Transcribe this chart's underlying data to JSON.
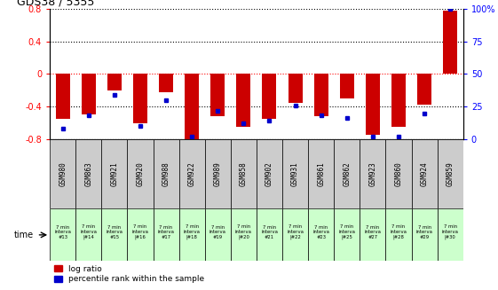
{
  "title": "GDS38 / 5355",
  "samples": [
    "GSM980",
    "GSM863",
    "GSM921",
    "GSM920",
    "GSM988",
    "GSM922",
    "GSM989",
    "GSM858",
    "GSM902",
    "GSM931",
    "GSM861",
    "GSM862",
    "GSM923",
    "GSM860",
    "GSM924",
    "GSM859"
  ],
  "time_labels": [
    "7 min\ninterva\n#13",
    "7 min\ninterva\n|#14",
    "7 min\ninterva\n#15",
    "7 min\ninterva\n|#16",
    "7 min\ninterva\n#17",
    "7 min\ninterva\n|#18",
    "7 min\ninterva\n#19",
    "7 min\ninterva\n|#20",
    "7 min\ninterva\n#21",
    "7 min\ninterva\n|#22",
    "7 min\ninterva\n#23",
    "7 min\ninterva\n|#25",
    "7 min\ninterva\n#27",
    "7 min\ninterva\n|#28",
    "7 min\ninterva\n#29",
    "7 min\ninterva\n|#30"
  ],
  "log_ratio": [
    -0.55,
    -0.5,
    -0.2,
    -0.6,
    -0.22,
    -0.82,
    -0.52,
    -0.65,
    -0.55,
    -0.35,
    -0.52,
    -0.3,
    -0.75,
    -0.65,
    -0.38,
    0.78
  ],
  "percentile": [
    8,
    18,
    34,
    10,
    30,
    2,
    22,
    12,
    14,
    26,
    18,
    16,
    2,
    2,
    20,
    100
  ],
  "ylim": [
    -0.8,
    0.8
  ],
  "yticks_left": [
    -0.8,
    -0.4,
    0,
    0.4,
    0.8
  ],
  "yticks_right": [
    0,
    25,
    50,
    75,
    100
  ],
  "bar_color": "#cc0000",
  "dot_color": "#0000cc",
  "bg_color": "#ffffff",
  "time_bg_color": "#ccffcc",
  "sample_bg_color": "#cccccc",
  "legend_red": "log ratio",
  "legend_blue": "percentile rank within the sample"
}
